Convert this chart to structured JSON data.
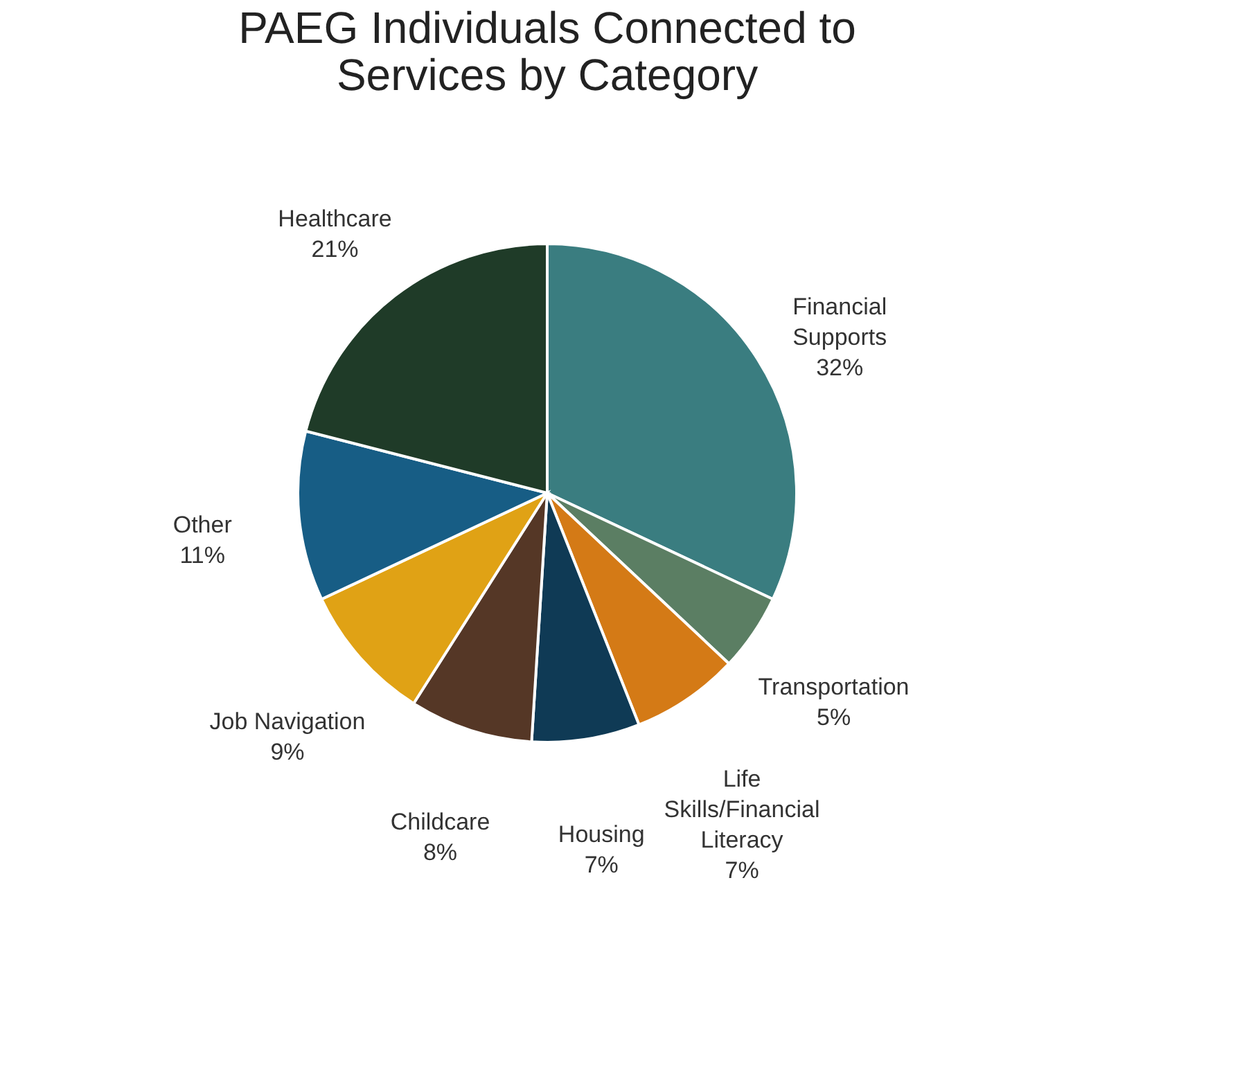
{
  "chart_data": {
    "type": "pie",
    "title": "PAEG Individuals Connected to Services by Category",
    "categories": [
      "Financial Supports",
      "Transportation",
      "Life Skills/Financial Literacy",
      "Housing",
      "Childcare",
      "Job Navigation",
      "Other",
      "Healthcare"
    ],
    "values": [
      32,
      5,
      7,
      7,
      8,
      9,
      11,
      21
    ],
    "colors": [
      "#3a7d80",
      "#5b7e63",
      "#d47a16",
      "#0f3a55",
      "#553726",
      "#e0a215",
      "#175d85",
      "#1f3b28"
    ],
    "value_labels": [
      "32%",
      "5%",
      "7%",
      "7%",
      "8%",
      "9%",
      "11%",
      "21%"
    ],
    "legend": false
  }
}
